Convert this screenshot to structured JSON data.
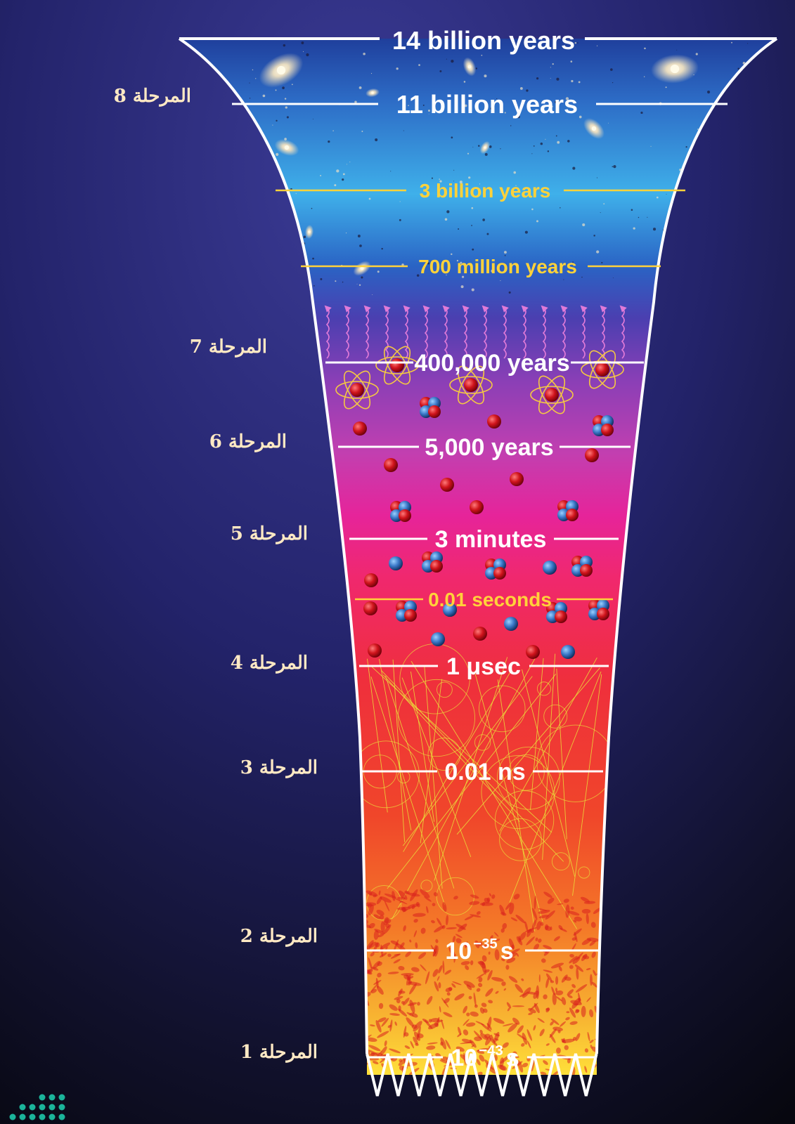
{
  "timeline": [
    {
      "label": "14 billion years",
      "color": "#ffffff",
      "weight": "major"
    },
    {
      "label": "11 billion years",
      "color": "#ffffff",
      "weight": "major"
    },
    {
      "label": "3 billion years",
      "color": "#ffd23a",
      "weight": "minor"
    },
    {
      "label": "700 million years",
      "color": "#ffd23a",
      "weight": "minor"
    },
    {
      "label": "400,000 years",
      "color": "#ffffff",
      "weight": "major"
    },
    {
      "label": "5,000 years",
      "color": "#ffffff",
      "weight": "major"
    },
    {
      "label": "3 minutes",
      "color": "#ffffff",
      "weight": "major"
    },
    {
      "label": "0.01 seconds",
      "color": "#ffd23a",
      "weight": "minor"
    },
    {
      "label": "1 μsec",
      "color": "#ffffff",
      "weight": "major"
    },
    {
      "label": "0.01 ns",
      "color": "#ffffff",
      "weight": "major"
    },
    {
      "label": "10",
      "sup": "−35",
      "unit": "s",
      "color": "#ffffff",
      "weight": "major"
    },
    {
      "label": "10",
      "sup": "−43",
      "unit": "s",
      "color": "#ffffff",
      "weight": "major"
    }
  ],
  "stages": [
    {
      "word": "المرحلة",
      "number": "8"
    },
    {
      "word": "المرحلة",
      "number": "7"
    },
    {
      "word": "المرحلة",
      "number": "6"
    },
    {
      "word": "المرحلة",
      "number": "5"
    },
    {
      "word": "المرحلة",
      "number": "4"
    },
    {
      "word": "المرحلة",
      "number": "3"
    },
    {
      "word": "المرحلة",
      "number": "2"
    },
    {
      "word": "المرحلة",
      "number": "1"
    }
  ],
  "colors": {
    "background_top": "#2e2f86",
    "background_bottom": "#0a0a14",
    "funnel_outline": "#ffffff",
    "minor_line": "#ffd23a",
    "stage_text": "#ffe9c4"
  }
}
